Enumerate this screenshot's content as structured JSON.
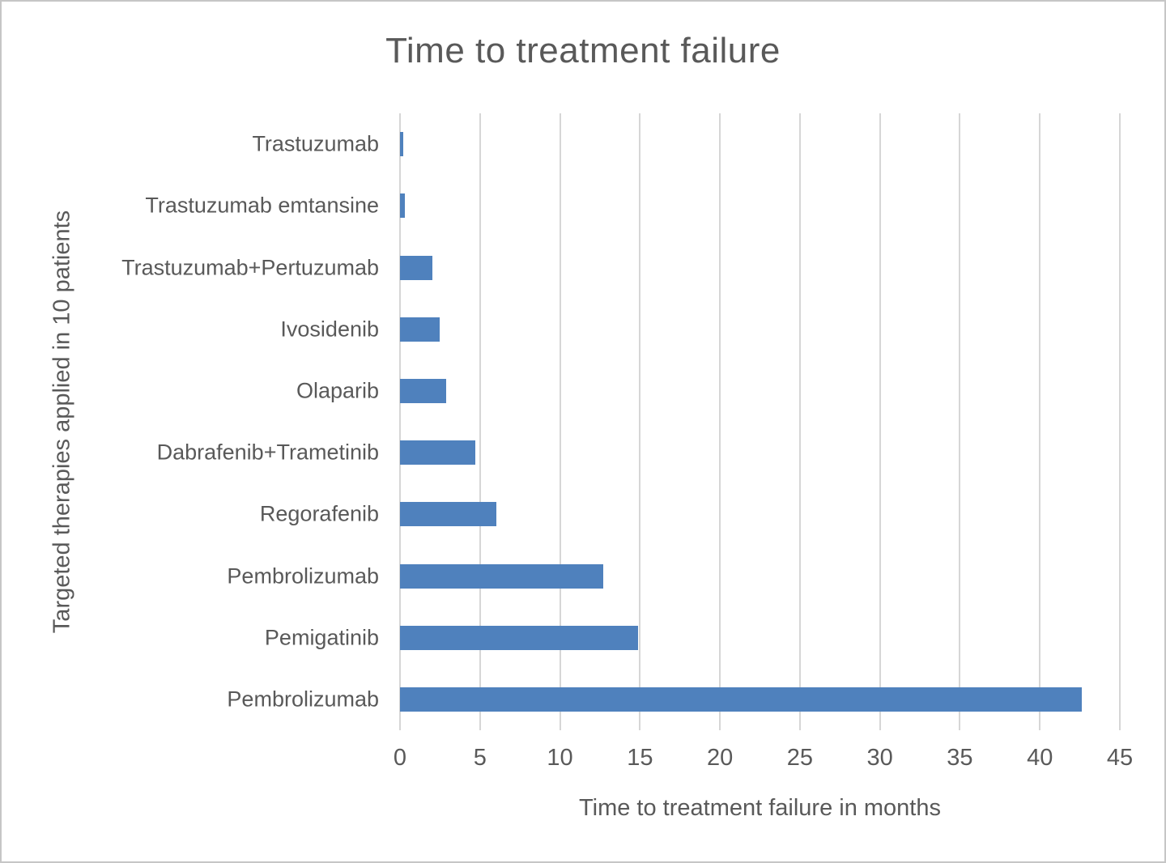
{
  "chart_data": {
    "type": "bar",
    "orientation": "horizontal",
    "title": "Time to treatment failure",
    "xlabel": "Time to treatment failure in months",
    "ylabel": "Targeted therapies applied in 10 patients",
    "categories": [
      "Trastuzumab",
      "Trastuzumab emtansine",
      "Trastuzumab+Pertuzumab",
      "Ivosidenib",
      "Olaparib",
      "Dabrafenib+Trametinib",
      "Regorafenib",
      "Pembrolizumab",
      "Pemigatinib",
      "Pembrolizumab"
    ],
    "values": [
      0.2,
      0.3,
      2.0,
      2.5,
      2.9,
      4.7,
      6.0,
      12.7,
      14.9,
      42.6
    ],
    "xlim": [
      0,
      45
    ],
    "xticks": [
      0,
      5,
      10,
      15,
      20,
      25,
      30,
      35,
      40,
      45
    ],
    "grid": true,
    "legend": false,
    "colors": {
      "bar": "#4F81BD",
      "gridline": "#d6d6d6",
      "text": "#595959",
      "frame_border": "#c6c6c6",
      "background": "#ffffff"
    }
  }
}
